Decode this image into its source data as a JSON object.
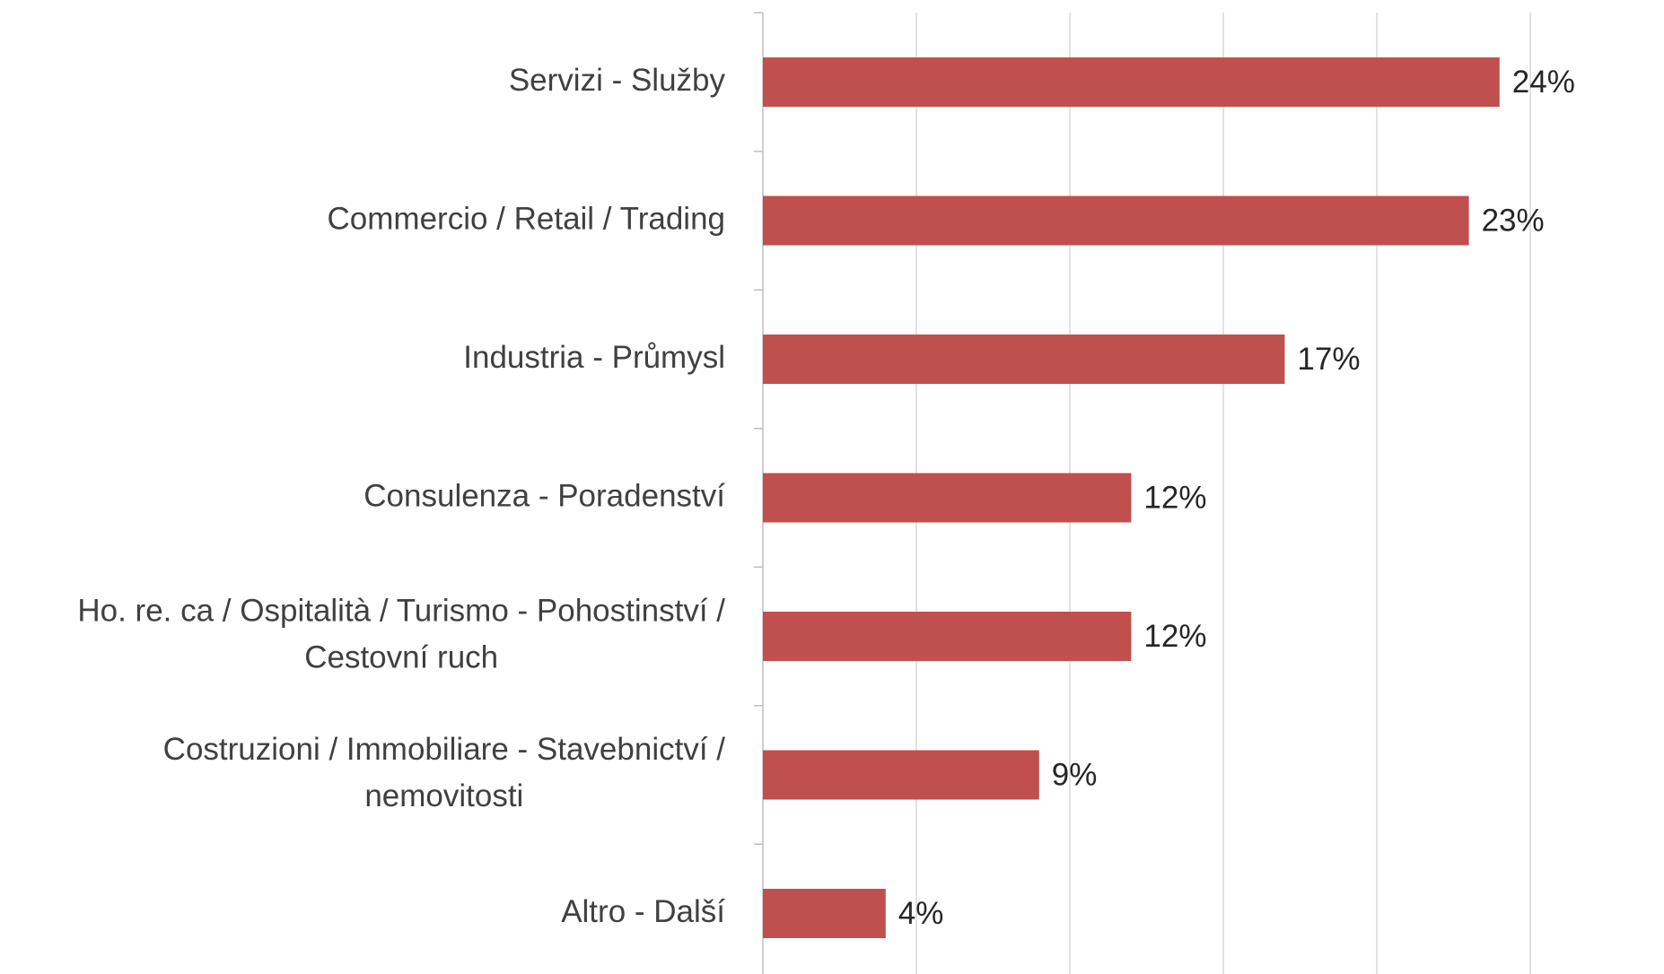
{
  "chart_data": {
    "type": "bar",
    "orientation": "horizontal",
    "categories": [
      "Servizi - Služby",
      "Commercio / Retail / Trading",
      "Industria - Průmysl",
      "Consulenza - Poradenství",
      "Ho. re. ca / Ospitalità / Turismo - Pohostinství / Cestovní ruch",
      "Costruzioni / Immobiliare - Stavebnictví / nemovitosti",
      "Altro - Další"
    ],
    "values": [
      24,
      23,
      17,
      12,
      12,
      9,
      4
    ],
    "value_labels": [
      "24%",
      "23%",
      "17%",
      "12%",
      "12%",
      "9%",
      "4%"
    ],
    "color": "#c0504d",
    "xlim": [
      0,
      25
    ],
    "xticks": [
      0,
      5,
      10,
      15,
      20,
      25
    ],
    "grid": true
  }
}
